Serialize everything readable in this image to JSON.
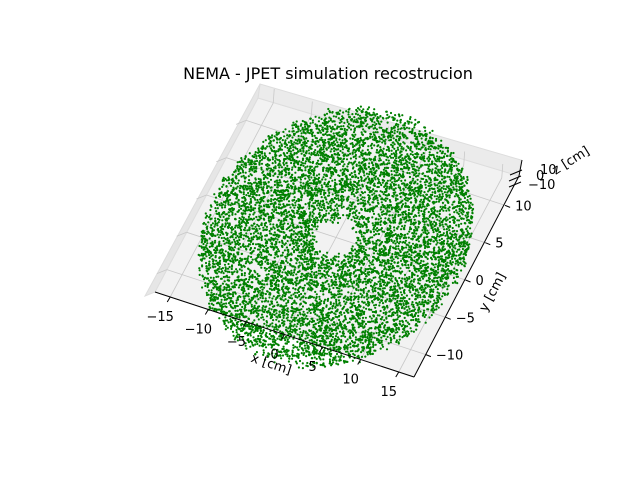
{
  "chart_data": {
    "type": "scatter",
    "projection": "3d",
    "title": "NEMA - JPET simulation recostrucion",
    "xlabel": "x [cm]",
    "ylabel": "y [cm]",
    "zlabel": "z [cm]",
    "x_ticks": [
      "−15",
      "−10",
      "−5",
      "0",
      "5",
      "10",
      "15"
    ],
    "y_ticks": [
      "−10",
      "−5",
      "0",
      "5",
      "10"
    ],
    "z_ticks": [
      "−10",
      "0",
      "10"
    ],
    "xlim": [
      -17,
      17
    ],
    "ylim": [
      -13,
      13
    ],
    "zlim": [
      -12,
      12
    ],
    "grid": true,
    "series": [
      {
        "marker": "point",
        "color": "#008000",
        "distribution": "hollow cylinder (annulus) viewed from above",
        "inner_radius": 2.5,
        "outer_radius": 16,
        "z_range": [
          -2,
          2
        ],
        "approx_point_count": 9000
      }
    ]
  },
  "colors": {
    "points": "#008000",
    "pane": "#f2f2f2",
    "grid": "#b0b0b0",
    "axis_line": "#000000"
  }
}
